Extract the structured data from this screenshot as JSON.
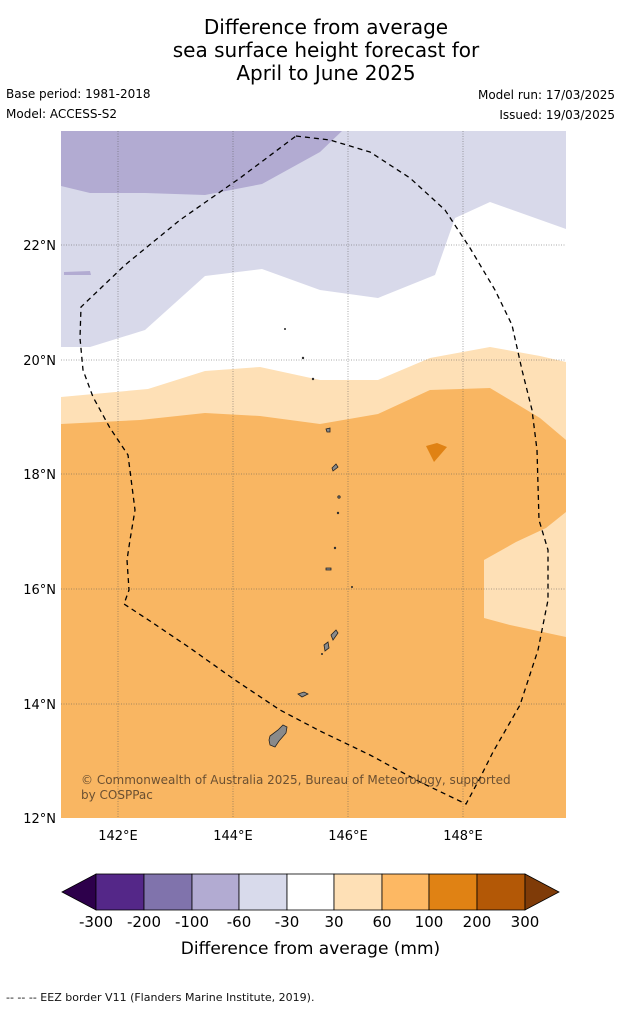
{
  "title": {
    "line1": "Difference from average",
    "line2": "sea surface height forecast for",
    "line3": "April to June 2025"
  },
  "meta": {
    "base_period": "Base period: 1981-2018",
    "model": "Model: ACCESS-S2",
    "model_run": "Model run: 17/03/2025",
    "issued": "Issued: 19/03/2025"
  },
  "map": {
    "lat_labels": [
      "22°N",
      "20°N",
      "18°N",
      "16°N",
      "14°N",
      "12°N"
    ],
    "lon_labels": [
      "142°E",
      "144°E",
      "146°E",
      "148°E"
    ],
    "copyright": "© Commonwealth of Australia 2025, Bureau of Meteorology, supported by COSPPac",
    "colors": {
      "below_minus100": "#b2abd2",
      "below_minus30": "#d8d9ea",
      "neutral": "#ffffff",
      "above_30": "#fee0b6",
      "above_60": "#f9b662",
      "above_100": "#e08214",
      "land": "#8a8a8a",
      "eez_border": "#000000"
    }
  },
  "colorbar": {
    "label": "Difference from average (mm)",
    "ticks": [
      "-300",
      "-200",
      "-100",
      "-60",
      "-30",
      "30",
      "60",
      "100",
      "200",
      "300"
    ],
    "colors": [
      "#2d004b",
      "#542788",
      "#8073ac",
      "#b2abd2",
      "#d8daeb",
      "#ffffff",
      "#fee0b6",
      "#fdb863",
      "#e08214",
      "#b35806",
      "#7f3b08"
    ]
  },
  "footnote": "--  --  -- EEZ border V11 (Flanders Marine Institute, 2019)."
}
